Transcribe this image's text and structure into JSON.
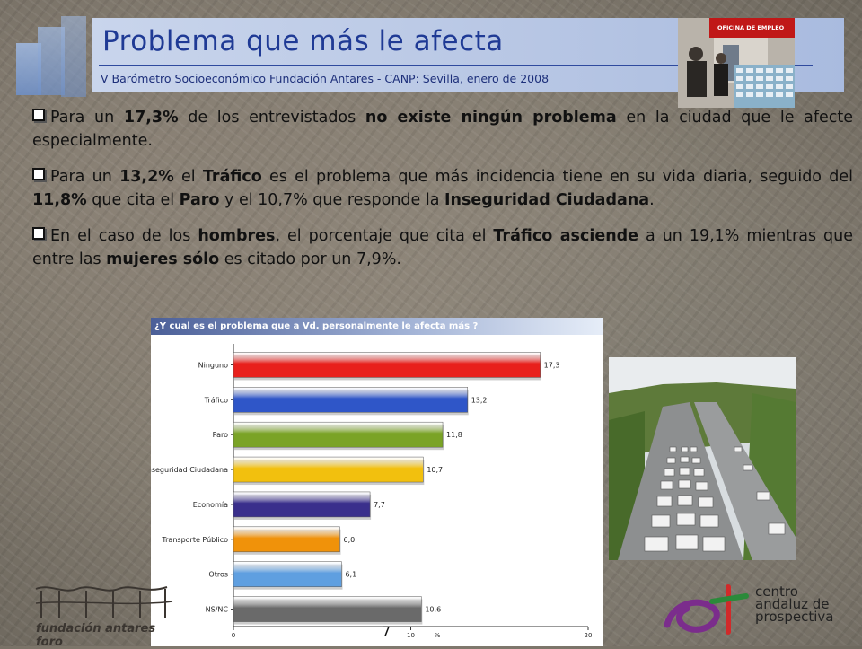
{
  "header": {
    "title": "Problema que más le afecta",
    "subtitle": "V Barómetro Socioeconómico Fundación Antares - CANP: Sevilla, enero de 2008",
    "photo_sign": "OFICINA DE EMPLEO"
  },
  "bullets": [
    [
      {
        "t": "Para un "
      },
      {
        "t": "17,3%",
        "b": true
      },
      {
        "t": " de los entrevistados "
      },
      {
        "t": "no existe ningún problema",
        "b": true
      },
      {
        "t": " en la ciudad que le afecte especialmente."
      }
    ],
    [
      {
        "t": "Para un "
      },
      {
        "t": "13,2%",
        "b": true
      },
      {
        "t": " el "
      },
      {
        "t": "Tráfico",
        "b": true
      },
      {
        "t": " es el problema que más incidencia tiene en su vida diaria, seguido del "
      },
      {
        "t": "11,8%",
        "b": true
      },
      {
        "t": " que cita el "
      },
      {
        "t": "Paro",
        "b": true
      },
      {
        "t": " y el 10,7% que responde la "
      },
      {
        "t": "Inseguridad Ciudadana",
        "b": true
      },
      {
        "t": "."
      }
    ],
    [
      {
        "t": "En el caso de los "
      },
      {
        "t": "hombres",
        "b": true
      },
      {
        "t": ", el porcentaje que cita el "
      },
      {
        "t": "Tráfico asciende",
        "b": true
      },
      {
        "t": " a un 19,1% mientras que entre las "
      },
      {
        "t": "mujeres sólo",
        "b": true
      },
      {
        "t": " es citado por un 7,9%."
      }
    ]
  ],
  "chart_data": {
    "type": "bar",
    "orientation": "horizontal",
    "title": "¿Y cual es el problema que a Vd. personalmente le afecta más ?",
    "categories": [
      "Ninguno",
      "Tráfico",
      "Paro",
      "Inseguridad Ciudadana",
      "Economía",
      "Transporte Público",
      "Otros",
      "NS/NC"
    ],
    "values": [
      17.3,
      13.2,
      11.8,
      10.7,
      7.7,
      6.0,
      6.1,
      10.6
    ],
    "value_labels": [
      "17,3",
      "13,2",
      "11,8",
      "10,7",
      "7,7",
      "6,0",
      "6,1",
      "10,6"
    ],
    "colors": [
      "#e8201c",
      "#2f56c8",
      "#7aa326",
      "#f2c00e",
      "#3a2f8c",
      "#f0920a",
      "#5f9fe0",
      "#6a6a6a"
    ],
    "xticks": [
      "0",
      "10",
      "20"
    ],
    "xlabel": "%",
    "xlim": [
      0,
      20
    ],
    "grid": false,
    "legend": "none"
  },
  "page_number": "7",
  "logos": {
    "left_text": "fundación antares foro",
    "right_text": [
      "centro",
      "andaluz de",
      "prospectiva"
    ]
  }
}
